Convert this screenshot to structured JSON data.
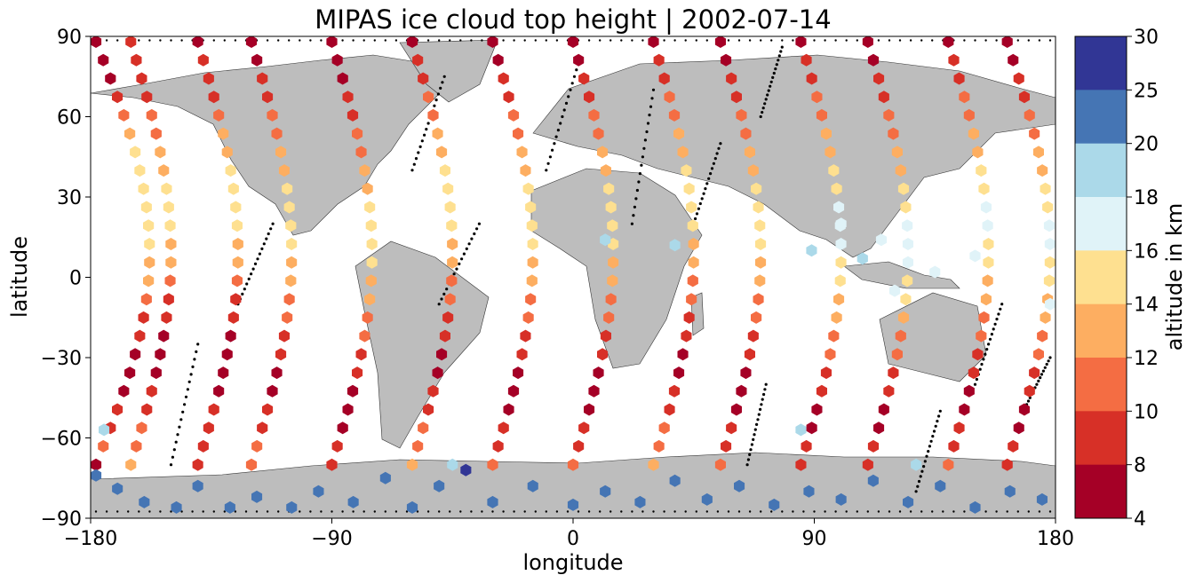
{
  "chart_data": {
    "type": "scatter",
    "subtype": "geographic map scatter (hexagon markers colored by altitude)",
    "title": "MIPAS ice cloud top height | 2002-07-14",
    "xlabel": "longitude",
    "ylabel": "latitude",
    "xlim": [
      -180,
      180
    ],
    "ylim": [
      -90,
      90
    ],
    "x_ticks": [
      "−180",
      "−90",
      "0",
      "90",
      "180"
    ],
    "y_ticks": [
      "90",
      "60",
      "30",
      "0",
      "−30",
      "−60",
      "−90"
    ],
    "grid": false,
    "colorbar": {
      "label": "altitude in km",
      "placement": "right",
      "tick_labels": [
        "30",
        "25",
        "20",
        "18",
        "16",
        "14",
        "12",
        "10",
        "8",
        "4"
      ],
      "bins": [
        {
          "min": 4,
          "max": 8,
          "color": "#a50026"
        },
        {
          "min": 8,
          "max": 10,
          "color": "#d73027"
        },
        {
          "min": 10,
          "max": 12,
          "color": "#f46d43"
        },
        {
          "min": 12,
          "max": 14,
          "color": "#fdae61"
        },
        {
          "min": 14,
          "max": 16,
          "color": "#fee090"
        },
        {
          "min": 16,
          "max": 18,
          "color": "#e0f3f8"
        },
        {
          "min": 18,
          "max": 20,
          "color": "#abd9e9"
        },
        {
          "min": 20,
          "max": 25,
          "color": "#4575b4"
        },
        {
          "min": 25,
          "max": 30,
          "color": "#313695"
        }
      ]
    },
    "tracks": [
      {
        "x0": -178,
        "x1": -158,
        "h": [
          7,
          7,
          7,
          9,
          10,
          12,
          14,
          15,
          15,
          14,
          14,
          14,
          13,
          12,
          10,
          9,
          8,
          7,
          7,
          7,
          8,
          9,
          10,
          7
        ]
      },
      {
        "x0": -165,
        "x1": -150,
        "h": [
          8,
          9,
          9,
          9,
          10,
          11,
          12,
          13,
          15,
          15,
          14,
          13,
          12,
          11,
          9,
          8,
          7,
          7,
          7,
          8,
          9,
          10,
          11,
          12
        ]
      },
      {
        "x0": -140,
        "x1": -125,
        "h": [
          7,
          8,
          8,
          9,
          10,
          12,
          13,
          14,
          15,
          15,
          14,
          13,
          12,
          10,
          9,
          8,
          7,
          7,
          7,
          7,
          8,
          8,
          9,
          9
        ]
      },
      {
        "x0": -120,
        "x1": -105,
        "h": [
          7,
          7,
          8,
          9,
          10,
          11,
          12,
          13,
          14,
          15,
          15,
          14,
          13,
          12,
          11,
          10,
          9,
          8,
          7,
          7,
          8,
          9,
          10,
          11
        ]
      },
      {
        "x0": -90,
        "x1": -75,
        "h": [
          7,
          7,
          7,
          8,
          9,
          10,
          11,
          12,
          13,
          14,
          15,
          15,
          14,
          13,
          12,
          11,
          10,
          9,
          8,
          7,
          7,
          7,
          8,
          9
        ]
      },
      {
        "x0": -60,
        "x1": -45,
        "h": [
          7,
          8,
          9,
          10,
          11,
          12,
          13,
          14,
          15,
          15,
          14,
          13,
          12,
          11,
          10,
          9,
          8,
          7,
          7,
          8,
          9,
          10,
          11,
          12
        ]
      },
      {
        "x0": -30,
        "x1": -15,
        "h": [
          7,
          7,
          8,
          9,
          10,
          11,
          12,
          13,
          14,
          15,
          15,
          14,
          13,
          12,
          11,
          10,
          9,
          8,
          7,
          7,
          7,
          8,
          9,
          10
        ]
      },
      {
        "x0": 0,
        "x1": 15,
        "h": [
          7,
          7,
          8,
          9,
          10,
          11,
          12,
          13,
          14,
          15,
          15,
          14,
          13,
          12,
          11,
          10,
          9,
          8,
          7,
          7,
          7,
          8,
          9,
          10
        ]
      },
      {
        "x0": 30,
        "x1": 45,
        "h": [
          7,
          8,
          9,
          10,
          11,
          12,
          13,
          14,
          15,
          15,
          14,
          13,
          12,
          11,
          10,
          9,
          8,
          7,
          7,
          8,
          9,
          10,
          11,
          12
        ]
      },
      {
        "x0": 55,
        "x1": 70,
        "h": [
          7,
          7,
          8,
          9,
          10,
          11,
          12,
          13,
          14,
          15,
          15,
          14,
          13,
          12,
          11,
          10,
          9,
          8,
          7,
          7,
          7,
          8,
          9,
          10
        ]
      },
      {
        "x0": 85,
        "x1": 100,
        "h": [
          7,
          8,
          9,
          10,
          11,
          12,
          13,
          14,
          15,
          16,
          17,
          16,
          15,
          14,
          13,
          12,
          11,
          10,
          9,
          8,
          7,
          7,
          8,
          9
        ]
      },
      {
        "x0": 110,
        "x1": 125,
        "h": [
          7,
          7,
          8,
          9,
          10,
          11,
          12,
          13,
          14,
          15,
          16,
          17,
          16,
          15,
          14,
          12,
          11,
          10,
          9,
          8,
          7,
          7,
          8,
          9
        ]
      },
      {
        "x0": 140,
        "x1": 155,
        "h": [
          7,
          8,
          9,
          10,
          11,
          12,
          13,
          14,
          15,
          16,
          16,
          15,
          14,
          13,
          12,
          11,
          10,
          9,
          8,
          7,
          7,
          8,
          9,
          10
        ]
      },
      {
        "x0": 162,
        "x1": 178,
        "h": [
          7,
          7,
          8,
          9,
          10,
          11,
          12,
          13,
          14,
          15,
          16,
          16,
          15,
          14,
          13,
          12,
          11,
          10,
          9,
          8,
          7,
          7,
          8,
          9
        ]
      }
    ],
    "antarctic_points": [
      {
        "lon": -178,
        "lat": -74,
        "h": 22
      },
      {
        "lon": -170,
        "lat": -79,
        "h": 22
      },
      {
        "lon": -160,
        "lat": -84,
        "h": 22
      },
      {
        "lon": -148,
        "lat": -86,
        "h": 22
      },
      {
        "lon": -140,
        "lat": -78,
        "h": 22
      },
      {
        "lon": -128,
        "lat": -86,
        "h": 22
      },
      {
        "lon": -118,
        "lat": -82,
        "h": 22
      },
      {
        "lon": -105,
        "lat": -86,
        "h": 22
      },
      {
        "lon": -95,
        "lat": -80,
        "h": 22
      },
      {
        "lon": -82,
        "lat": -84,
        "h": 22
      },
      {
        "lon": -70,
        "lat": -75,
        "h": 22
      },
      {
        "lon": -60,
        "lat": -86,
        "h": 22
      },
      {
        "lon": -50,
        "lat": -78,
        "h": 22
      },
      {
        "lon": -40,
        "lat": -72,
        "h": 27
      },
      {
        "lon": -30,
        "lat": -84,
        "h": 22
      },
      {
        "lon": -15,
        "lat": -78,
        "h": 22
      },
      {
        "lon": 0,
        "lat": -85,
        "h": 22
      },
      {
        "lon": 12,
        "lat": -80,
        "h": 22
      },
      {
        "lon": 25,
        "lat": -84,
        "h": 22
      },
      {
        "lon": 38,
        "lat": -76,
        "h": 22
      },
      {
        "lon": 50,
        "lat": -83,
        "h": 22
      },
      {
        "lon": 62,
        "lat": -78,
        "h": 22
      },
      {
        "lon": 75,
        "lat": -85,
        "h": 22
      },
      {
        "lon": 88,
        "lat": -80,
        "h": 22
      },
      {
        "lon": 100,
        "lat": -83,
        "h": 22
      },
      {
        "lon": 112,
        "lat": -76,
        "h": 22
      },
      {
        "lon": 125,
        "lat": -84,
        "h": 22
      },
      {
        "lon": 137,
        "lat": -78,
        "h": 22
      },
      {
        "lon": 150,
        "lat": -86,
        "h": 22
      },
      {
        "lon": 163,
        "lat": -80,
        "h": 22
      },
      {
        "lon": 175,
        "lat": -83,
        "h": 22
      },
      {
        "lon": -175,
        "lat": -57,
        "h": 19
      },
      {
        "lon": 85,
        "lat": -57,
        "h": 19
      },
      {
        "lon": 128,
        "lat": -70,
        "h": 19
      },
      {
        "lon": -45,
        "lat": -70,
        "h": 19
      }
    ],
    "isolated_points": [
      {
        "lon": 12,
        "lat": 14,
        "h": 19
      },
      {
        "lon": 38,
        "lat": 12,
        "h": 19
      },
      {
        "lon": 89,
        "lat": 10,
        "h": 19
      },
      {
        "lon": 100,
        "lat": 20,
        "h": 17
      },
      {
        "lon": 115,
        "lat": 14,
        "h": 17
      },
      {
        "lon": 108,
        "lat": 7,
        "h": 19
      },
      {
        "lon": 120,
        "lat": -5,
        "h": 17
      },
      {
        "lon": 135,
        "lat": 2,
        "h": 17
      },
      {
        "lon": 150,
        "lat": 8,
        "h": 17
      },
      {
        "lon": 178,
        "lat": -10,
        "h": 17
      }
    ],
    "dotted_tracks": [
      {
        "x0": -125,
        "x1": -112,
        "lat_from": -10,
        "lat_to": 20
      },
      {
        "x0": -150,
        "x1": -140,
        "lat_from": -70,
        "lat_to": -25
      },
      {
        "x0": -60,
        "x1": -48,
        "lat_from": 40,
        "lat_to": 75
      },
      {
        "x0": -50,
        "x1": -35,
        "lat_from": -10,
        "lat_to": 20
      },
      {
        "x0": -10,
        "x1": 2,
        "lat_from": 40,
        "lat_to": 80
      },
      {
        "x0": 22,
        "x1": 30,
        "lat_from": 20,
        "lat_to": 70
      },
      {
        "x0": 45,
        "x1": 55,
        "lat_from": 20,
        "lat_to": 50
      },
      {
        "x0": 65,
        "x1": 72,
        "lat_from": -70,
        "lat_to": -40
      },
      {
        "x0": 70,
        "x1": 78,
        "lat_from": 60,
        "lat_to": 86
      },
      {
        "x0": 128,
        "x1": 137,
        "lat_from": -80,
        "lat_to": -50
      },
      {
        "x0": 150,
        "x1": 160,
        "lat_from": -40,
        "lat_to": -10
      },
      {
        "x0": 168,
        "x1": 178,
        "lat_from": -50,
        "lat_to": -30
      }
    ]
  }
}
